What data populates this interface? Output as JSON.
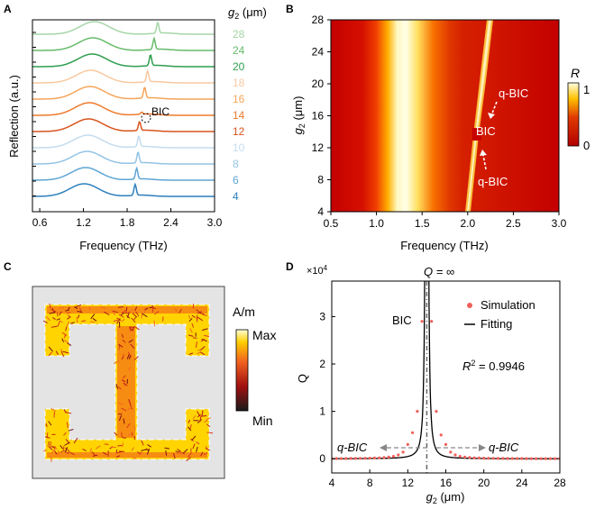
{
  "panel_labels": [
    "A",
    "B",
    "C",
    "D"
  ],
  "chart_data": [
    {
      "panel": "A",
      "type": "line",
      "title": "",
      "xlabel": "Frequency (THz)",
      "ylabel": "Reflection (a.u.)",
      "xlim": [
        0.5,
        3.0
      ],
      "xticks": [
        "0.6",
        "1.2",
        "1.8",
        "2.4",
        "3.0"
      ],
      "xtick_values": [
        0.6,
        1.2,
        1.8,
        2.4,
        3.0
      ],
      "legend_title": "g",
      "legend_title_sub": "2",
      "legend_title_unit": " (μm)",
      "annotation": "BIC",
      "series": [
        {
          "name": "28",
          "color": "#a5d6a7",
          "peak1_x": 1.35,
          "peak2_x": 2.22
        },
        {
          "name": "24",
          "color": "#66bb6a",
          "peak1_x": 1.33,
          "peak2_x": 2.17
        },
        {
          "name": "20",
          "color": "#2e9e4f",
          "peak1_x": 1.32,
          "peak2_x": 2.12
        },
        {
          "name": "18",
          "color": "#f8c9a0",
          "peak1_x": 1.3,
          "peak2_x": 2.08
        },
        {
          "name": "16",
          "color": "#f5a55a",
          "peak1_x": 1.29,
          "peak2_x": 2.04
        },
        {
          "name": "14",
          "color": "#ef7a2a",
          "peak1_x": 1.28,
          "peak2_x": 2.0
        },
        {
          "name": "12",
          "color": "#d9541e",
          "peak1_x": 1.27,
          "peak2_x": 1.97
        },
        {
          "name": "10",
          "color": "#c3dcef",
          "peak1_x": 1.26,
          "peak2_x": 1.96
        },
        {
          "name": "8",
          "color": "#93c4e4",
          "peak1_x": 1.25,
          "peak2_x": 1.95
        },
        {
          "name": "6",
          "color": "#5ea5d4",
          "peak1_x": 1.23,
          "peak2_x": 1.93
        },
        {
          "name": "4",
          "color": "#2c7fbd",
          "peak1_x": 1.21,
          "peak2_x": 1.91
        }
      ]
    },
    {
      "panel": "B",
      "type": "heatmap",
      "title": "",
      "xlabel": "Frequency (THz)",
      "ylabel_main": "g",
      "ylabel_sub": "2",
      "ylabel_unit": " (μm)",
      "xlim": [
        0.5,
        3.0
      ],
      "ylim": [
        4,
        28
      ],
      "xticks": [
        "0.5",
        "1.0",
        "1.5",
        "2.0",
        "2.5",
        "3.0"
      ],
      "xtick_values": [
        0.5,
        1.0,
        1.5,
        2.0,
        2.5,
        3.0
      ],
      "yticks": [
        "4",
        "8",
        "12",
        "16",
        "20",
        "24",
        "28"
      ],
      "ytick_values": [
        4,
        8,
        12,
        16,
        20,
        24,
        28
      ],
      "colorbar_label": "R",
      "colorbar_max": "1",
      "colorbar_min": "0",
      "annotations": [
        "q-BIC",
        "BIC",
        "q-BIC"
      ]
    },
    {
      "panel": "C",
      "type": "other",
      "colorbar_label": "A/m",
      "colorbar_max": "Max",
      "colorbar_min": "Min"
    },
    {
      "panel": "D",
      "type": "scatter",
      "title": "",
      "xlabel_main": "g",
      "xlabel_sub": "2",
      "xlabel_unit": " (μm)",
      "ylabel": "Q",
      "y_multiplier": "×10",
      "y_multiplier_exp": "4",
      "xlim": [
        4,
        28
      ],
      "ylim": [
        -0.3,
        3.75
      ],
      "xticks": [
        "4",
        "8",
        "12",
        "16",
        "20",
        "24",
        "28"
      ],
      "xtick_values": [
        4,
        8,
        12,
        16,
        20,
        24,
        28
      ],
      "yticks": [
        "0",
        "1",
        "2",
        "3"
      ],
      "ytick_values": [
        0,
        1,
        2,
        3
      ],
      "top_label": "Q = ∞",
      "bic_label": "BIC",
      "r2_label": "R",
      "r2_exp": "2",
      "r2_value": " = 0.9946",
      "legend": [
        "Simulation",
        "Fitting"
      ],
      "q_bic_left": "q-BIC",
      "q_bic_right": "q-BIC",
      "bic_x": 14,
      "series": [
        {
          "name": "Simulation",
          "x": [
            4,
            4.5,
            5,
            5.5,
            6,
            6.5,
            7,
            7.5,
            8,
            8.5,
            9,
            9.5,
            10,
            10.5,
            11,
            11.5,
            12,
            12.5,
            13,
            13.5,
            14.5,
            15,
            15.5,
            16,
            16.5,
            17,
            17.5,
            18,
            18.5,
            19,
            19.5,
            20,
            20.5,
            21,
            21.5,
            22,
            22.5,
            23,
            23.5,
            24,
            24.5,
            25,
            25.5,
            26,
            26.5,
            27,
            27.5,
            28
          ],
          "y": [
            0.003,
            0.004,
            0.004,
            0.005,
            0.006,
            0.007,
            0.008,
            0.01,
            0.012,
            0.015,
            0.019,
            0.025,
            0.034,
            0.05,
            0.08,
            0.14,
            0.3,
            0.55,
            1.0,
            2.9,
            2.9,
            1.0,
            0.5,
            0.3,
            0.14,
            0.08,
            0.05,
            0.034,
            0.025,
            0.019,
            0.015,
            0.012,
            0.01,
            0.008,
            0.007,
            0.006,
            0.005,
            0.005,
            0.004,
            0.004,
            0.003,
            0.003,
            0.003,
            0.003,
            0.002,
            0.002,
            0.002,
            0.002
          ]
        },
        {
          "name": "Fitting",
          "model": "a/(x-14)^2",
          "a": 0.19
        }
      ]
    }
  ]
}
